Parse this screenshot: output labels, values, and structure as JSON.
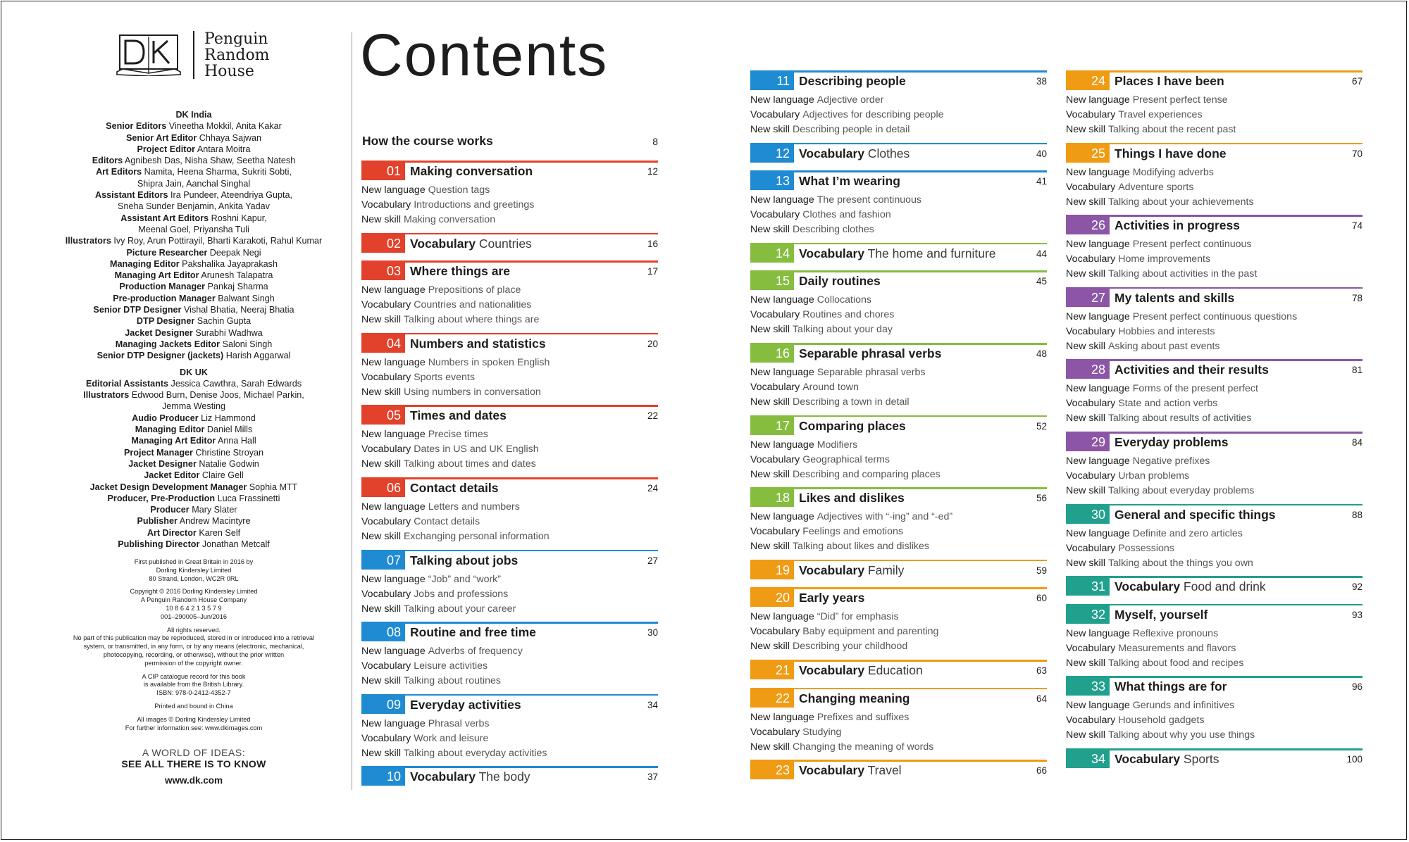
{
  "colors": {
    "red": "#e2412b",
    "blue": "#1f8bd2",
    "green": "#86bd3f",
    "orange": "#ef9b14",
    "purple": "#8c55a6",
    "teal": "#21a08e"
  },
  "logo": {
    "dk": "DK",
    "publisher_lines": [
      "Penguin",
      "Random",
      "House"
    ]
  },
  "credits": [
    {
      "type": "heading",
      "text": "DK India"
    },
    {
      "type": "role",
      "role": "Senior Editors",
      "names": "Vineetha Mokkil, Anita Kakar"
    },
    {
      "type": "role",
      "role": "Senior Art Editor",
      "names": "Chhaya Sajwan"
    },
    {
      "type": "role",
      "role": "Project Editor",
      "names": "Antara Moitra"
    },
    {
      "type": "role",
      "role": "Editors",
      "names": "Agnibesh Das, Nisha Shaw, Seetha Natesh"
    },
    {
      "type": "role",
      "role": "Art Editors",
      "names": "Namita, Heena Sharma, Sukriti Sobti,"
    },
    {
      "type": "plain",
      "text": "Shipra Jain, Aanchal Singhal"
    },
    {
      "type": "role",
      "role": "Assistant Editors",
      "names": "Ira Pundeer, Ateendriya Gupta,"
    },
    {
      "type": "plain",
      "text": "Sneha Sunder Benjamin, Ankita Yadav"
    },
    {
      "type": "role",
      "role": "Assistant Art Editors",
      "names": "Roshni Kapur,"
    },
    {
      "type": "plain",
      "text": "Meenal Goel, Priyansha Tuli"
    },
    {
      "type": "role",
      "role": "Illustrators",
      "names": "Ivy Roy, Arun Pottirayil, Bharti Karakoti, Rahul Kumar"
    },
    {
      "type": "role",
      "role": "Picture Researcher",
      "names": "Deepak Negi"
    },
    {
      "type": "role",
      "role": "Managing Editor",
      "names": "Pakshalika Jayaprakash"
    },
    {
      "type": "role",
      "role": "Managing Art Editor",
      "names": "Arunesh Talapatra"
    },
    {
      "type": "role",
      "role": "Production Manager",
      "names": "Pankaj Sharma"
    },
    {
      "type": "role",
      "role": "Pre-production Manager",
      "names": "Balwant Singh"
    },
    {
      "type": "role",
      "role": "Senior DTP Designer",
      "names": "Vishal Bhatia, Neeraj Bhatia"
    },
    {
      "type": "role",
      "role": "DTP Designer",
      "names": "Sachin Gupta"
    },
    {
      "type": "role",
      "role": "Jacket Designer",
      "names": "Surabhi Wadhwa"
    },
    {
      "type": "role",
      "role": "Managing Jackets Editor",
      "names": "Saloni Singh"
    },
    {
      "type": "role",
      "role": "Senior DTP Designer (jackets)",
      "names": "Harish Aggarwal"
    },
    {
      "type": "gap"
    },
    {
      "type": "heading",
      "text": "DK UK"
    },
    {
      "type": "role",
      "role": "Editorial Assistants",
      "names": "Jessica Cawthra, Sarah Edwards"
    },
    {
      "type": "role",
      "role": "Illustrators",
      "names": "Edwood Burn, Denise Joos, Michael Parkin,"
    },
    {
      "type": "plain",
      "text": "Jemma Westing"
    },
    {
      "type": "role",
      "role": "Audio Producer",
      "names": "Liz Hammond"
    },
    {
      "type": "role",
      "role": "Managing Editor",
      "names": "Daniel Mills"
    },
    {
      "type": "role",
      "role": "Managing Art Editor",
      "names": "Anna Hall"
    },
    {
      "type": "role",
      "role": "Project Manager",
      "names": "Christine Stroyan"
    },
    {
      "type": "role",
      "role": "Jacket Designer",
      "names": "Natalie Godwin"
    },
    {
      "type": "role",
      "role": "Jacket Editor",
      "names": "Claire Gell"
    },
    {
      "type": "role",
      "role": "Jacket Design Development Manager",
      "names": "Sophia MTT"
    },
    {
      "type": "role",
      "role": "Producer, Pre-Production",
      "names": "Luca Frassinetti"
    },
    {
      "type": "role",
      "role": "Producer",
      "names": "Mary Slater"
    },
    {
      "type": "role",
      "role": "Publisher",
      "names": "Andrew Macintyre"
    },
    {
      "type": "role",
      "role": "Art Director",
      "names": "Karen Self"
    },
    {
      "type": "role",
      "role": "Publishing Director",
      "names": "Jonathan Metcalf"
    }
  ],
  "imprint": [
    "First published in Great Britain in 2016 by",
    "Dorling Kindersley Limited",
    "80 Strand, London, WC2R 0RL",
    "",
    "Copyright © 2016 Dorling Kindersley Limited",
    "A Penguin Random House Company",
    "10 8 6 4 2 1 3 5 7 9",
    "001–290005–Jun/2016",
    "",
    "All rights reserved.",
    "No part of this publication may be reproduced, stored in or introduced into a retrieval",
    "system, or transmitted, in any form, or by any means (electronic, mechanical,",
    "photocopying, recording, or otherwise), without the prior written",
    "permission of the copyright owner.",
    "",
    "A CIP catalogue record for this book",
    "is available from the British Library.",
    "ISBN: 978-0-2412-4352-7",
    "",
    "Printed and bound in China",
    "",
    "All images © Dorling Kindersley Limited",
    "For further information see: www.dkimages.com"
  ],
  "tagline": {
    "line1": "A WORLD OF IDEAS:",
    "line2": "SEE ALL THERE IS TO KNOW"
  },
  "website": "www.dk.com",
  "title": "Contents",
  "how": {
    "title": "How the course works",
    "page": "8"
  },
  "units": [
    {
      "num": "01",
      "color": "red",
      "title": "Making conversation",
      "page": "12",
      "lines": [
        [
          "New language",
          "Question tags"
        ],
        [
          "Vocabulary",
          "Introductions and greetings"
        ],
        [
          "New skill",
          "Making conversation"
        ]
      ]
    },
    {
      "num": "02",
      "color": "red",
      "title": "Vocabulary",
      "subtitle": "Countries",
      "page": "16",
      "lines": []
    },
    {
      "num": "03",
      "color": "red",
      "title": "Where things are",
      "page": "17",
      "lines": [
        [
          "New language",
          "Prepositions of place"
        ],
        [
          "Vocabulary",
          "Countries and nationalities"
        ],
        [
          "New skill",
          "Talking about where things are"
        ]
      ]
    },
    {
      "num": "04",
      "color": "red",
      "title": "Numbers and statistics",
      "page": "20",
      "lines": [
        [
          "New language",
          "Numbers in spoken English"
        ],
        [
          "Vocabulary",
          "Sports events"
        ],
        [
          "New skill",
          "Using numbers in conversation"
        ]
      ]
    },
    {
      "num": "05",
      "color": "red",
      "title": "Times and dates",
      "page": "22",
      "lines": [
        [
          "New language",
          "Precise times"
        ],
        [
          "Vocabulary",
          "Dates in US and UK English"
        ],
        [
          "New skill",
          "Talking about times and dates"
        ]
      ]
    },
    {
      "num": "06",
      "color": "red",
      "title": "Contact details",
      "page": "24",
      "lines": [
        [
          "New language",
          "Letters and numbers"
        ],
        [
          "Vocabulary",
          "Contact details"
        ],
        [
          "New skill",
          "Exchanging personal information"
        ]
      ]
    },
    {
      "num": "07",
      "color": "blue",
      "title": "Talking about jobs",
      "page": "27",
      "lines": [
        [
          "New language",
          "“Job” and “work”"
        ],
        [
          "Vocabulary",
          "Jobs and professions"
        ],
        [
          "New skill",
          "Talking about your career"
        ]
      ]
    },
    {
      "num": "08",
      "color": "blue",
      "title": "Routine and free time",
      "page": "30",
      "lines": [
        [
          "New language",
          "Adverbs of frequency"
        ],
        [
          "Vocabulary",
          "Leisure activities"
        ],
        [
          "New skill",
          "Talking about routines"
        ]
      ]
    },
    {
      "num": "09",
      "color": "blue",
      "title": "Everyday activities",
      "page": "34",
      "lines": [
        [
          "New language",
          "Phrasal verbs"
        ],
        [
          "Vocabulary",
          "Work and leisure"
        ],
        [
          "New skill",
          "Talking about everyday activities"
        ]
      ]
    },
    {
      "num": "10",
      "color": "blue",
      "title": "Vocabulary",
      "subtitle": "The body",
      "page": "37",
      "lines": []
    },
    {
      "num": "11",
      "color": "blue",
      "title": "Describing people",
      "page": "38",
      "lines": [
        [
          "New language",
          "Adjective order"
        ],
        [
          "Vocabulary",
          "Adjectives for describing people"
        ],
        [
          "New skill",
          "Describing people in detail"
        ]
      ]
    },
    {
      "num": "12",
      "color": "blue",
      "title": "Vocabulary",
      "subtitle": "Clothes",
      "page": "40",
      "lines": []
    },
    {
      "num": "13",
      "color": "blue",
      "title": "What I’m wearing",
      "page": "41",
      "lines": [
        [
          "New language",
          "The present continuous"
        ],
        [
          "Vocabulary",
          "Clothes and fashion"
        ],
        [
          "New skill",
          "Describing clothes"
        ]
      ]
    },
    {
      "num": "14",
      "color": "green",
      "title": "Vocabulary",
      "subtitle": "The home and furniture",
      "page": "44",
      "lines": []
    },
    {
      "num": "15",
      "color": "green",
      "title": "Daily routines",
      "page": "45",
      "lines": [
        [
          "New language",
          "Collocations"
        ],
        [
          "Vocabulary",
          "Routines and chores"
        ],
        [
          "New skill",
          "Talking about your day"
        ]
      ]
    },
    {
      "num": "16",
      "color": "green",
      "title": "Separable phrasal verbs",
      "page": "48",
      "lines": [
        [
          "New language",
          "Separable phrasal verbs"
        ],
        [
          "Vocabulary",
          "Around town"
        ],
        [
          "New skill",
          "Describing a town in detail"
        ]
      ]
    },
    {
      "num": "17",
      "color": "green",
      "title": "Comparing places",
      "page": "52",
      "lines": [
        [
          "New language",
          "Modifiers"
        ],
        [
          "Vocabulary",
          "Geographical terms"
        ],
        [
          "New skill",
          "Describing and comparing places"
        ]
      ]
    },
    {
      "num": "18",
      "color": "green",
      "title": "Likes and dislikes",
      "page": "56",
      "lines": [
        [
          "New language",
          "Adjectives with “-ing” and “-ed”"
        ],
        [
          "Vocabulary",
          "Feelings and emotions"
        ],
        [
          "New skill",
          "Talking about likes and dislikes"
        ]
      ]
    },
    {
      "num": "19",
      "color": "orange",
      "title": "Vocabulary",
      "subtitle": "Family",
      "page": "59",
      "lines": []
    },
    {
      "num": "20",
      "color": "orange",
      "title": "Early years",
      "page": "60",
      "lines": [
        [
          "New language",
          "“Did” for emphasis"
        ],
        [
          "Vocabulary",
          "Baby equipment and parenting"
        ],
        [
          "New skill",
          "Describing your childhood"
        ]
      ]
    },
    {
      "num": "21",
      "color": "orange",
      "title": "Vocabulary",
      "subtitle": "Education",
      "page": "63",
      "lines": []
    },
    {
      "num": "22",
      "color": "orange",
      "title": "Changing meaning",
      "page": "64",
      "lines": [
        [
          "New language",
          "Prefixes and suffixes"
        ],
        [
          "Vocabulary",
          "Studying"
        ],
        [
          "New skill",
          "Changing the meaning of words"
        ]
      ]
    },
    {
      "num": "23",
      "color": "orange",
      "title": "Vocabulary",
      "subtitle": "Travel",
      "page": "66",
      "lines": []
    },
    {
      "num": "24",
      "color": "orange",
      "title": "Places I have been",
      "page": "67",
      "lines": [
        [
          "New language",
          "Present perfect tense"
        ],
        [
          "Vocabulary",
          "Travel experiences"
        ],
        [
          "New skill",
          "Talking about the recent past"
        ]
      ]
    },
    {
      "num": "25",
      "color": "orange",
      "title": "Things I have done",
      "page": "70",
      "lines": [
        [
          "New language",
          "Modifying adverbs"
        ],
        [
          "Vocabulary",
          "Adventure sports"
        ],
        [
          "New skill",
          "Talking about your achievements"
        ]
      ]
    },
    {
      "num": "26",
      "color": "purple",
      "title": "Activities in progress",
      "page": "74",
      "lines": [
        [
          "New language",
          "Present perfect continuous"
        ],
        [
          "Vocabulary",
          "Home improvements"
        ],
        [
          "New skill",
          "Talking about activities in the past"
        ]
      ]
    },
    {
      "num": "27",
      "color": "purple",
      "title": "My talents and skills",
      "page": "78",
      "lines": [
        [
          "New language",
          "Present perfect continuous questions"
        ],
        [
          "Vocabulary",
          "Hobbies and interests"
        ],
        [
          "New skill",
          "Asking about past events"
        ]
      ]
    },
    {
      "num": "28",
      "color": "purple",
      "title": "Activities and their results",
      "page": "81",
      "lines": [
        [
          "New language",
          "Forms of the present perfect"
        ],
        [
          "Vocabulary",
          "State and action verbs"
        ],
        [
          "New skill",
          "Talking about results of activities"
        ]
      ]
    },
    {
      "num": "29",
      "color": "purple",
      "title": "Everyday problems",
      "page": "84",
      "lines": [
        [
          "New language",
          "Negative prefixes"
        ],
        [
          "Vocabulary",
          "Urban problems"
        ],
        [
          "New skill",
          "Talking about everyday problems"
        ]
      ]
    },
    {
      "num": "30",
      "color": "teal",
      "title": "General and specific things",
      "page": "88",
      "lines": [
        [
          "New language",
          "Definite and zero articles"
        ],
        [
          "Vocabulary",
          "Possessions"
        ],
        [
          "New skill",
          "Talking about the things you own"
        ]
      ]
    },
    {
      "num": "31",
      "color": "teal",
      "title": "Vocabulary",
      "subtitle": "Food and drink",
      "page": "92",
      "lines": []
    },
    {
      "num": "32",
      "color": "teal",
      "title": "Myself, yourself",
      "page": "93",
      "lines": [
        [
          "New language",
          "Reflexive pronouns"
        ],
        [
          "Vocabulary",
          "Measurements and flavors"
        ],
        [
          "New skill",
          "Talking about food and recipes"
        ]
      ]
    },
    {
      "num": "33",
      "color": "teal",
      "title": "What things are for",
      "page": "96",
      "lines": [
        [
          "New language",
          "Gerunds and infinitives"
        ],
        [
          "Vocabulary",
          "Household gadgets"
        ],
        [
          "New skill",
          "Talking about why you use things"
        ]
      ]
    },
    {
      "num": "34",
      "color": "teal",
      "title": "Vocabulary",
      "subtitle": "Sports",
      "page": "100",
      "lines": []
    }
  ]
}
